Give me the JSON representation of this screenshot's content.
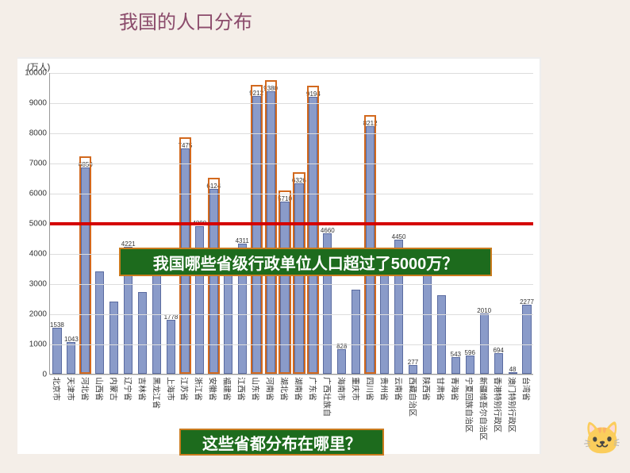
{
  "title": "我国的人口分布",
  "chart": {
    "type": "bar",
    "ylabel": "(万人)",
    "ylim": [
      0,
      10000
    ],
    "ytick_step": 1000,
    "yticks": [
      0,
      1000,
      2000,
      3000,
      4000,
      5000,
      6000,
      7000,
      8000,
      9000,
      10000
    ],
    "red_line_value": 5000,
    "bar_color": "#8a9bc9",
    "bar_border": "#5a6ba0",
    "grid_color": "#dddddd",
    "highlight_border": "#d2691e",
    "background": "#ffffff",
    "categories": [
      "北京市",
      "天津市",
      "河北省",
      "山西省",
      "内蒙古",
      "辽宁省",
      "吉林省",
      "黑龙江省",
      "上海市",
      "江苏省",
      "浙江省",
      "安徽省",
      "福建省",
      "江西省",
      "山东省",
      "河南省",
      "湖北省",
      "湖南省",
      "广东省",
      "广西壮族自",
      "海南市",
      "重庆市",
      "四川省",
      "贵州省",
      "云南省",
      "西藏自治区",
      "陕西省",
      "甘肃省",
      "青海省",
      "宁夏回族自治区",
      "新疆维吾尔自治区",
      "香港特别行政区",
      "澳门特别行政区",
      "台湾省"
    ],
    "values": [
      1538,
      1043,
      6850,
      3400,
      2400,
      4221,
      2700,
      3820,
      1778,
      7475,
      4898,
      6124,
      3535,
      4311,
      9212,
      9380,
      5710,
      6326,
      9194,
      4660,
      828,
      2800,
      8212,
      3730,
      4450,
      277,
      3720,
      2600,
      543,
      596,
      2010,
      694,
      48,
      2277
    ],
    "show_labels": [
      1538,
      1043,
      6850,
      null,
      null,
      4221,
      null,
      3820,
      1778,
      7475,
      4898,
      6124,
      3535,
      4311,
      9212,
      9380,
      5710,
      6326,
      9194,
      4660,
      828,
      null,
      8212,
      3730,
      4450,
      277,
      3720,
      null,
      543,
      596,
      2010,
      694,
      48,
      2277
    ],
    "highlighted": [
      2,
      9,
      11,
      14,
      15,
      16,
      17,
      18,
      22
    ]
  },
  "question1": "我国哪些省级行政单位人口超过了5000万？",
  "question2": "这些省都分布在哪里？"
}
